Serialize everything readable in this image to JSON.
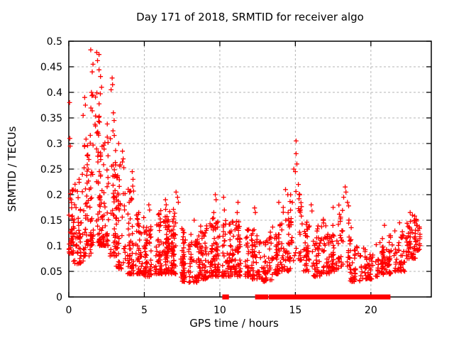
{
  "chart_data": {
    "type": "scatter",
    "title": "Day 171 of 2018, SRMTID for receiver algo",
    "xlabel": "GPS time / hours",
    "ylabel": "SRMTID / TECUs",
    "xlim": [
      0,
      24
    ],
    "ylim": [
      0,
      0.5
    ],
    "xticks": [
      0,
      5,
      10,
      15,
      20
    ],
    "xtick_labels": [
      "0",
      "5",
      "10",
      "15",
      "20"
    ],
    "yticks": [
      0,
      0.05,
      0.1,
      0.15,
      0.2,
      0.25,
      0.3,
      0.35,
      0.4,
      0.45,
      0.5
    ],
    "ytick_labels": [
      "0",
      "0.05",
      "0.1",
      "0.15",
      "0.2",
      "0.25",
      "0.3",
      "0.35",
      "0.4",
      "0.45",
      "0.5"
    ],
    "grid": true,
    "legend": "none",
    "marker": {
      "symbol": "plus",
      "color": "#ff0000",
      "size": 6.8,
      "stroke_width": 1.3
    },
    "colors": {
      "axis": "#000000",
      "grid": "#b5b5b5",
      "background": "#ffffff",
      "text": "#000000"
    },
    "seed": 171,
    "bins_format": [
      "x_start",
      "x_end",
      "count",
      "y_min",
      "y_max"
    ],
    "scatter_bins": [
      [
        0.0,
        0.35,
        40,
        0.085,
        0.23
      ],
      [
        0.35,
        0.9,
        55,
        0.065,
        0.24
      ],
      [
        0.9,
        1.4,
        55,
        0.08,
        0.33
      ],
      [
        1.4,
        2.2,
        90,
        0.1,
        0.4
      ],
      [
        2.2,
        2.7,
        50,
        0.1,
        0.34
      ],
      [
        2.7,
        3.2,
        50,
        0.08,
        0.33
      ],
      [
        3.2,
        3.8,
        50,
        0.055,
        0.27
      ],
      [
        3.8,
        4.5,
        60,
        0.045,
        0.22
      ],
      [
        4.5,
        5.0,
        50,
        0.045,
        0.17
      ],
      [
        5.0,
        5.6,
        60,
        0.04,
        0.165
      ],
      [
        5.6,
        6.2,
        60,
        0.045,
        0.17
      ],
      [
        6.2,
        6.8,
        60,
        0.045,
        0.175
      ],
      [
        6.8,
        7.4,
        60,
        0.045,
        0.185
      ],
      [
        7.4,
        8.0,
        55,
        0.03,
        0.135
      ],
      [
        8.0,
        8.6,
        55,
        0.028,
        0.125
      ],
      [
        8.6,
        9.2,
        55,
        0.035,
        0.14
      ],
      [
        9.2,
        9.8,
        55,
        0.04,
        0.155
      ],
      [
        9.8,
        10.4,
        50,
        0.04,
        0.15
      ],
      [
        10.4,
        11.0,
        50,
        0.04,
        0.15
      ],
      [
        11.0,
        11.6,
        50,
        0.04,
        0.15
      ],
      [
        11.6,
        12.2,
        45,
        0.04,
        0.135
      ],
      [
        12.2,
        12.8,
        45,
        0.035,
        0.125
      ],
      [
        12.8,
        13.4,
        45,
        0.03,
        0.13
      ],
      [
        13.4,
        14.0,
        45,
        0.045,
        0.15
      ],
      [
        14.0,
        14.6,
        40,
        0.05,
        0.17
      ],
      [
        14.6,
        15.4,
        45,
        0.07,
        0.21
      ],
      [
        15.4,
        16.0,
        40,
        0.05,
        0.15
      ],
      [
        16.0,
        16.6,
        45,
        0.04,
        0.14
      ],
      [
        16.6,
        17.3,
        45,
        0.045,
        0.155
      ],
      [
        17.3,
        17.9,
        35,
        0.05,
        0.14
      ],
      [
        17.9,
        18.7,
        45,
        0.06,
        0.19
      ],
      [
        18.7,
        19.4,
        40,
        0.03,
        0.105
      ],
      [
        19.4,
        20.1,
        45,
        0.035,
        0.11
      ],
      [
        20.1,
        20.8,
        40,
        0.04,
        0.115
      ],
      [
        20.8,
        21.5,
        45,
        0.045,
        0.125
      ],
      [
        21.5,
        22.2,
        45,
        0.05,
        0.13
      ],
      [
        22.2,
        22.9,
        50,
        0.075,
        0.15
      ],
      [
        22.9,
        23.2,
        28,
        0.09,
        0.158
      ]
    ],
    "outlier_points": [
      [
        0.05,
        0.38
      ],
      [
        0.07,
        0.31
      ],
      [
        0.1,
        0.295
      ],
      [
        0.95,
        0.355
      ],
      [
        1.05,
        0.39
      ],
      [
        1.1,
        0.375
      ],
      [
        1.45,
        0.483
      ],
      [
        1.85,
        0.478
      ],
      [
        1.6,
        0.455
      ],
      [
        1.9,
        0.462
      ],
      [
        1.55,
        0.44
      ],
      [
        2.0,
        0.474
      ],
      [
        2.0,
        0.444
      ],
      [
        2.1,
        0.431
      ],
      [
        2.17,
        0.41
      ],
      [
        1.5,
        0.4
      ],
      [
        2.87,
        0.428
      ],
      [
        2.9,
        0.415
      ],
      [
        2.8,
        0.405
      ],
      [
        2.95,
        0.36
      ],
      [
        3.0,
        0.345
      ],
      [
        3.3,
        0.3
      ],
      [
        3.55,
        0.285
      ],
      [
        3.6,
        0.27
      ],
      [
        4.2,
        0.245
      ],
      [
        4.25,
        0.23
      ],
      [
        5.3,
        0.18
      ],
      [
        5.35,
        0.17
      ],
      [
        6.4,
        0.19
      ],
      [
        6.45,
        0.18
      ],
      [
        7.1,
        0.205
      ],
      [
        7.2,
        0.195
      ],
      [
        7.25,
        0.185
      ],
      [
        8.3,
        0.15
      ],
      [
        9.6,
        0.165
      ],
      [
        9.7,
        0.2
      ],
      [
        9.75,
        0.19
      ],
      [
        10.25,
        0.195
      ],
      [
        10.3,
        0.17
      ],
      [
        11.15,
        0.165
      ],
      [
        11.2,
        0.185
      ],
      [
        12.3,
        0.174
      ],
      [
        12.35,
        0.165
      ],
      [
        13.9,
        0.185
      ],
      [
        14.2,
        0.175
      ],
      [
        14.35,
        0.21
      ],
      [
        14.5,
        0.2
      ],
      [
        14.8,
        0.185
      ],
      [
        14.9,
        0.25
      ],
      [
        15.0,
        0.245
      ],
      [
        15.05,
        0.305
      ],
      [
        15.05,
        0.28
      ],
      [
        15.1,
        0.26
      ],
      [
        15.2,
        0.22
      ],
      [
        16.05,
        0.18
      ],
      [
        16.1,
        0.168
      ],
      [
        17.5,
        0.175
      ],
      [
        18.2,
        0.195
      ],
      [
        18.3,
        0.215
      ],
      [
        18.35,
        0.205
      ],
      [
        18.45,
        0.185
      ],
      [
        20.9,
        0.14
      ],
      [
        21.9,
        0.145
      ],
      [
        22.6,
        0.165
      ],
      [
        22.75,
        0.16
      ],
      [
        22.9,
        0.158
      ],
      [
        23.0,
        0.152
      ]
    ],
    "zero_line_runs": [
      [
        10.28,
        10.42
      ],
      [
        10.44,
        10.48
      ],
      [
        12.45,
        12.58
      ],
      [
        12.6,
        12.72
      ],
      [
        12.78,
        12.86
      ],
      [
        12.95,
        13.08
      ],
      [
        13.35,
        13.6
      ],
      [
        13.64,
        13.92
      ],
      [
        14.02,
        14.3
      ],
      [
        14.34,
        14.52
      ],
      [
        14.58,
        14.9
      ],
      [
        14.94,
        15.22
      ],
      [
        15.28,
        15.6
      ],
      [
        15.64,
        15.92
      ],
      [
        15.97,
        16.24
      ],
      [
        16.28,
        16.5
      ],
      [
        16.55,
        16.92
      ],
      [
        16.98,
        17.28
      ],
      [
        17.35,
        17.66
      ],
      [
        17.7,
        17.9
      ],
      [
        17.95,
        18.32
      ],
      [
        18.48,
        18.8
      ],
      [
        18.84,
        19.1
      ],
      [
        19.14,
        19.35
      ],
      [
        19.42,
        19.7
      ],
      [
        19.74,
        19.9
      ],
      [
        19.95,
        20.2
      ],
      [
        20.24,
        20.45
      ],
      [
        20.62,
        20.9
      ],
      [
        20.94,
        21.18
      ]
    ]
  }
}
